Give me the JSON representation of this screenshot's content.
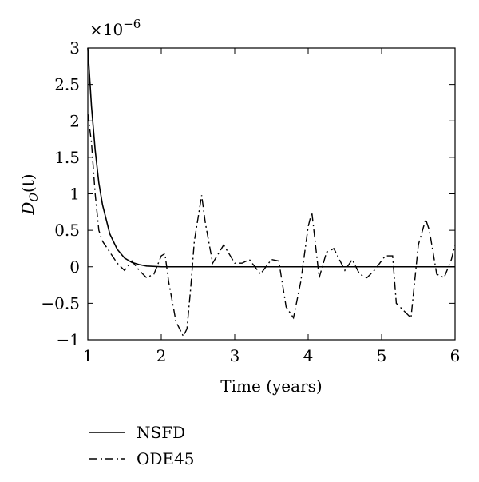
{
  "chart_data": {
    "type": "line",
    "xlabel": "Time (years)",
    "ylabel_main": "D",
    "ylabel_sub": "O",
    "ylabel_tail": "(t)",
    "y_multiplier_base": "×10",
    "y_multiplier_exp": "−6",
    "xlim": [
      1,
      6
    ],
    "ylim": [
      -1,
      3
    ],
    "x_ticks": [
      1,
      2,
      3,
      4,
      5,
      6
    ],
    "x_tick_labels": [
      "1",
      "2",
      "3",
      "4",
      "5",
      "6"
    ],
    "y_ticks": [
      -1,
      -0.5,
      0,
      0.5,
      1,
      1.5,
      2,
      2.5,
      3
    ],
    "y_tick_labels": [
      "−1",
      "−0.5",
      "0",
      "0.5",
      "1",
      "1.5",
      "2",
      "2.5",
      "3"
    ],
    "grid": false,
    "legend_position": "bottom-left",
    "series": [
      {
        "name": "NSFD",
        "style": "solid",
        "x": [
          1.0,
          1.05,
          1.1,
          1.15,
          1.2,
          1.3,
          1.4,
          1.5,
          1.6,
          1.7,
          1.8,
          2.0,
          2.5,
          3.0,
          4.0,
          5.0,
          6.0
        ],
        "y": [
          3.0,
          2.2,
          1.6,
          1.15,
          0.85,
          0.45,
          0.24,
          0.12,
          0.06,
          0.03,
          0.01,
          0.0,
          0.0,
          0.0,
          0.0,
          0.0,
          0.0
        ]
      },
      {
        "name": "ODE45",
        "style": "dashdot",
        "x": [
          1.0,
          1.05,
          1.1,
          1.15,
          1.2,
          1.3,
          1.4,
          1.5,
          1.6,
          1.7,
          1.8,
          1.9,
          2.0,
          2.05,
          2.1,
          2.2,
          2.3,
          2.35,
          2.4,
          2.45,
          2.55,
          2.6,
          2.7,
          2.85,
          3.0,
          3.1,
          3.2,
          3.35,
          3.5,
          3.6,
          3.7,
          3.8,
          3.9,
          4.0,
          4.05,
          4.15,
          4.25,
          4.35,
          4.5,
          4.6,
          4.7,
          4.8,
          4.9,
          5.05,
          5.15,
          5.2,
          5.3,
          5.4,
          5.5,
          5.6,
          5.65,
          5.7,
          5.75,
          5.85,
          5.95,
          6.0
        ],
        "y": [
          2.1,
          1.7,
          1.0,
          0.5,
          0.35,
          0.2,
          0.05,
          -0.05,
          0.08,
          -0.05,
          -0.15,
          -0.1,
          0.15,
          0.18,
          -0.2,
          -0.75,
          -0.95,
          -0.85,
          -0.3,
          0.35,
          0.98,
          0.6,
          0.05,
          0.3,
          0.05,
          0.05,
          0.1,
          -0.1,
          0.1,
          0.08,
          -0.55,
          -0.7,
          -0.2,
          0.55,
          0.75,
          -0.15,
          0.2,
          0.25,
          -0.05,
          0.1,
          -0.1,
          -0.15,
          -0.05,
          0.15,
          0.15,
          -0.5,
          -0.6,
          -0.7,
          0.3,
          0.65,
          0.5,
          0.2,
          -0.1,
          -0.15,
          0.1,
          0.3
        ]
      }
    ]
  }
}
